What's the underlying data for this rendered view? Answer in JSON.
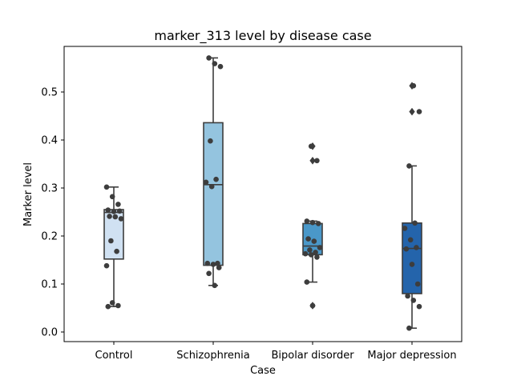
{
  "chart_data": {
    "type": "box",
    "title": "marker_313 level by disease case",
    "xlabel": "Case",
    "ylabel": "Marker level",
    "ylim": [
      -0.02,
      0.595
    ],
    "yticks": [
      "0.0",
      "0.1",
      "0.2",
      "0.3",
      "0.4",
      "0.5"
    ],
    "grid": false,
    "legend": "none",
    "categories": [
      "Control",
      "Schizophrenia",
      "Bipolar disorder",
      "Major depression"
    ],
    "colors": [
      "#d0e1f2",
      "#94c4df",
      "#4a98c9",
      "#2464ab"
    ],
    "edge_color": "#3d3d3d",
    "boxes": [
      {
        "q1": 0.152,
        "median": 0.249,
        "q3": 0.255,
        "whisker_low": 0.053,
        "whisker_high": 0.302,
        "fliers": []
      },
      {
        "q1": 0.139,
        "median": 0.307,
        "q3": 0.436,
        "whisker_low": 0.097,
        "whisker_high": 0.571,
        "fliers": []
      },
      {
        "q1": 0.161,
        "median": 0.179,
        "q3": 0.226,
        "whisker_low": 0.104,
        "whisker_high": 0.231,
        "fliers": [
          0.387,
          0.357,
          0.055
        ]
      },
      {
        "q1": 0.08,
        "median": 0.174,
        "q3": 0.227,
        "whisker_low": 0.008,
        "whisker_high": 0.346,
        "fliers": [
          0.513,
          0.459
        ]
      }
    ],
    "points": [
      [
        0.302,
        0.282,
        0.266,
        0.254,
        0.251,
        0.252,
        0.241,
        0.24,
        0.236,
        0.19,
        0.168,
        0.138,
        0.061,
        0.055,
        0.053
      ],
      [
        0.571,
        0.559,
        0.553,
        0.398,
        0.318,
        0.312,
        0.303,
        0.143,
        0.143,
        0.141,
        0.134,
        0.122,
        0.097
      ],
      [
        0.387,
        0.357,
        0.231,
        0.228,
        0.226,
        0.194,
        0.189,
        0.176,
        0.171,
        0.166,
        0.163,
        0.161,
        0.156,
        0.104,
        0.055
      ],
      [
        0.513,
        0.459,
        0.346,
        0.227,
        0.216,
        0.192,
        0.176,
        0.173,
        0.141,
        0.1,
        0.075,
        0.066,
        0.053,
        0.008
      ]
    ]
  }
}
